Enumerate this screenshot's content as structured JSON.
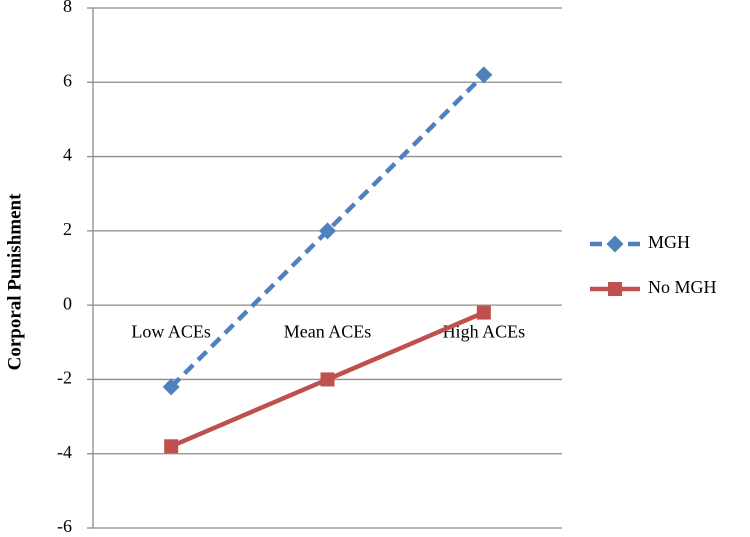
{
  "chart_data": {
    "type": "line",
    "y_label": "Corporal Punishment",
    "categories": [
      "Low ACEs",
      "Mean ACEs",
      "High ACEs"
    ],
    "series": [
      {
        "name": "MGH",
        "color": "#4f81bd",
        "values": [
          -2.2,
          2.0,
          6.2
        ]
      },
      {
        "name": "No MGH",
        "color": "#c0504d",
        "values": [
          -3.8,
          -2.0,
          -0.2
        ]
      }
    ],
    "ylim": [
      -6,
      8
    ],
    "yticks": [
      -6,
      -4,
      -2,
      0,
      2,
      4,
      6,
      8
    ],
    "grid": true
  }
}
